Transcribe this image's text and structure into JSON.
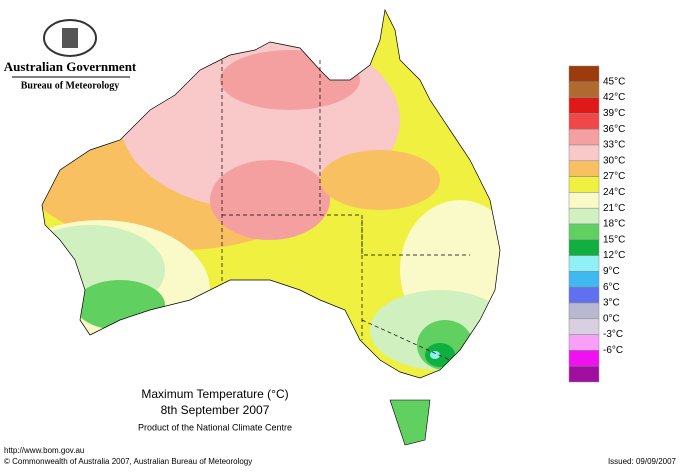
{
  "header": {
    "title": "Australian Government",
    "subtitle": "Bureau of Meteorology"
  },
  "map": {
    "title": "Maximum Temperature (°C)",
    "date": "8th September 2007",
    "product": "Product of the National Climate Centre"
  },
  "legend": {
    "colors": [
      "#9c3c0c",
      "#b06a30",
      "#e01818",
      "#f04848",
      "#f4a0a0",
      "#f9c8c8",
      "#f8c060",
      "#f0f040",
      "#fafac8",
      "#d0f0c0",
      "#60d060",
      "#10b040",
      "#90f0f8",
      "#40b8f0",
      "#6070f0",
      "#b8b8d0",
      "#d8d0e0",
      "#f8a0f8",
      "#f010f0",
      "#a010a0"
    ],
    "labels": [
      "45°C",
      "42°C",
      "39°C",
      "36°C",
      "33°C",
      "30°C",
      "27°C",
      "24°C",
      "21°C",
      "18°C",
      "15°C",
      "12°C",
      "9°C",
      "6°C",
      "3°C",
      "0°C",
      "-3°C",
      "-6°C"
    ]
  },
  "footer": {
    "url": "http://www.bom.gov.au",
    "copyright": "© Commonwealth of Australia 2007, Australian Bureau of Meteorology",
    "issued": "Issued: 09/09/2007"
  }
}
